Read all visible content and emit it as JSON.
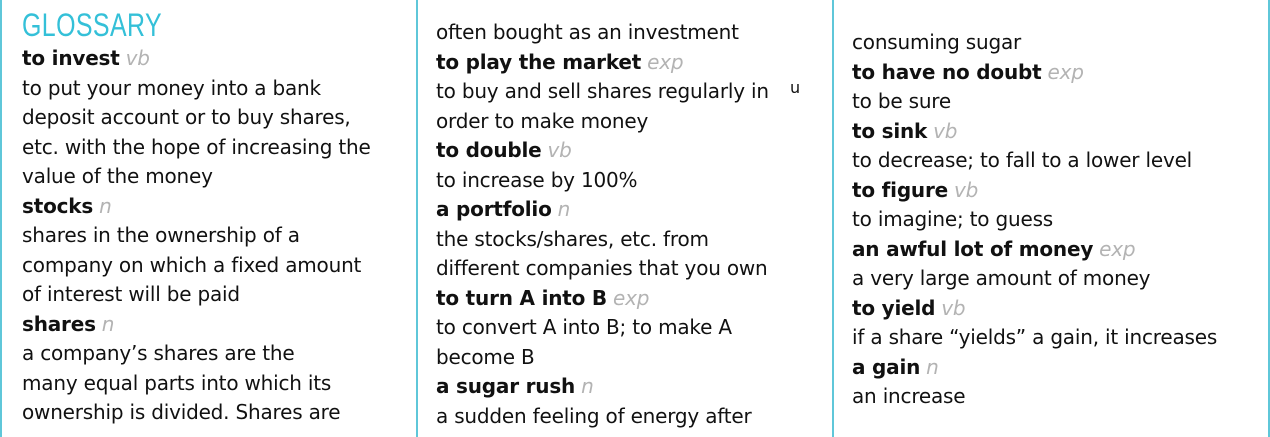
{
  "column1": {
    "title": "GLOSSARY",
    "lines": [
      {
        "term": "to invest",
        "pos": "vb"
      },
      {
        "text": "to put your money into a bank"
      },
      {
        "text": "deposit account or to buy shares,"
      },
      {
        "text": "etc. with the hope of increasing the"
      },
      {
        "text": "value of the money"
      },
      {
        "term": "stocks",
        "pos": "n"
      },
      {
        "text": "shares in the ownership of a"
      },
      {
        "text": "company on which a fixed amount"
      },
      {
        "text": "of interest will be paid"
      },
      {
        "term": "shares",
        "pos": "n"
      },
      {
        "text": "a company’s shares are the"
      },
      {
        "text": "many equal parts into which its"
      },
      {
        "text": "ownership is divided. Shares are"
      }
    ]
  },
  "column2": {
    "lines": [
      {
        "text": "often bought as an investment"
      },
      {
        "term": "to play the market",
        "pos": "exp"
      },
      {
        "text": "to buy and sell shares regularly in"
      },
      {
        "text": "order to make money"
      },
      {
        "term": "to double",
        "pos": "vb"
      },
      {
        "text": "to increase by 100%"
      },
      {
        "term": "a portfolio",
        "pos": "n"
      },
      {
        "text": "the stocks/shares, etc.  from"
      },
      {
        "text": "different companies that you own"
      },
      {
        "term": "to turn A into B",
        "pos": "exp"
      },
      {
        "text": "to convert A into B; to make A"
      },
      {
        "text": "become B"
      },
      {
        "term": "a sugar rush",
        "pos": "n"
      },
      {
        "text": "a sudden feeling of energy after"
      }
    ]
  },
  "column3": {
    "lines": [
      {
        "text": "consuming sugar"
      },
      {
        "term": "to have no doubt",
        "pos": "exp"
      },
      {
        "text": "to be sure"
      },
      {
        "term": "to sink",
        "pos": "vb"
      },
      {
        "text": "to decrease; to fall to a lower level"
      },
      {
        "term": "to figure",
        "pos": "vb"
      },
      {
        "text": "to imagine; to guess"
      },
      {
        "term": "an awful lot of money",
        "pos": "exp"
      },
      {
        "text": "a very large amount of money"
      },
      {
        "term": "to yield",
        "pos": "vb"
      },
      {
        "text": "if a share “yields” a gain, it increases"
      },
      {
        "term": "a gain",
        "pos": "n"
      },
      {
        "text": "an increase"
      }
    ]
  },
  "colors": {
    "accent": "#34c0d8",
    "divider": "#5fc7d9",
    "pos_label": "#b3b3b3",
    "text": "#111111"
  },
  "stray_marks": {
    "col2_mark": "u"
  }
}
